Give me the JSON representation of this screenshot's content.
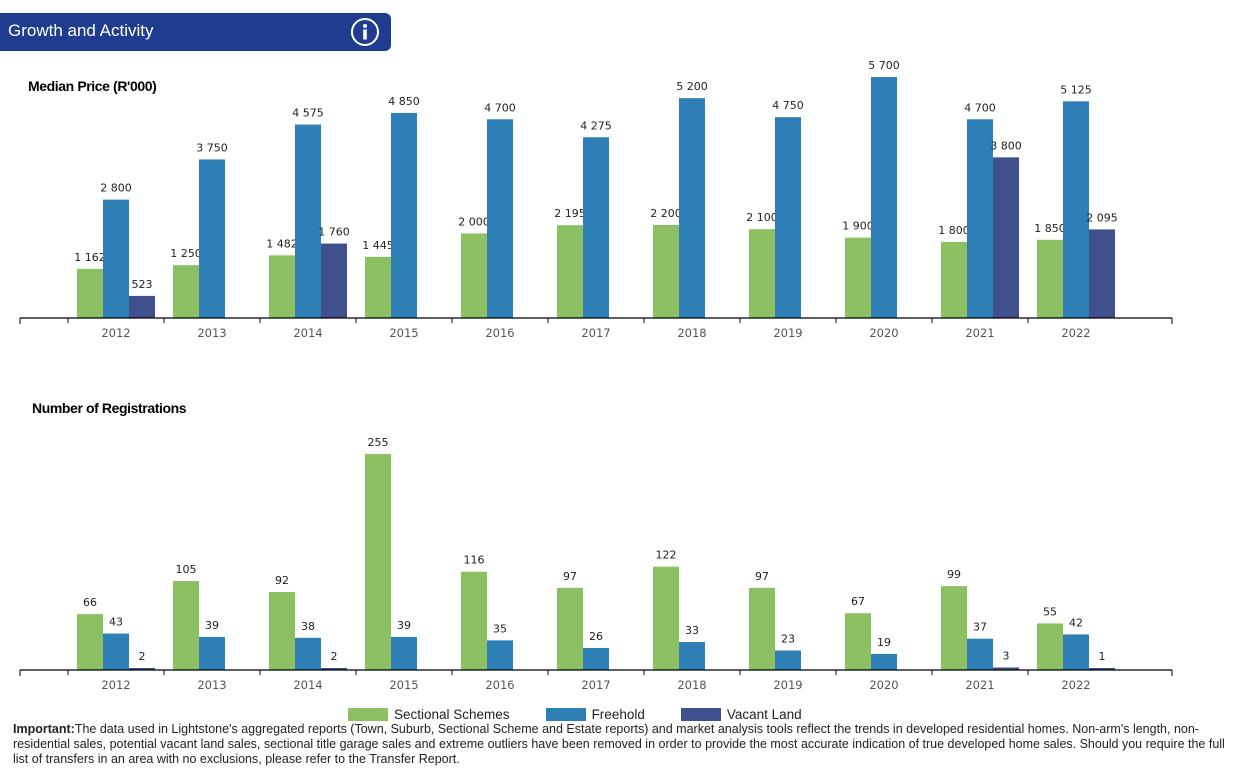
{
  "header": {
    "title": "Growth and Activity",
    "info_icon": "info-icon"
  },
  "colors": {
    "header": "#1f3c8f",
    "sectional": "#8cc063",
    "freehold": "#2e7fb6",
    "vacant": "#3f508d"
  },
  "legend": [
    {
      "name": "Sectional Schemes",
      "color": "#8cc063"
    },
    {
      "name": "Freehold",
      "color": "#2e7fb6"
    },
    {
      "name": "Vacant Land",
      "color": "#3f508d"
    }
  ],
  "disclaimer": {
    "lead": "Important:",
    "text": "The data used in Lightstone's aggregated reports (Town, Suburb, Sectional Scheme and Estate reports) and market analysis tools reflect the trends in developed residential homes. Non-arm's length, non-residential sales, potential vacant land sales, sectional title garage sales and extreme outliers have been removed in order to provide the most accurate indication of true developed home sales. Should you require the full list of transfers in an area with no exclusions, please refer to the Transfer Report."
  },
  "chart_data": [
    {
      "type": "bar",
      "title": "Median Price (R'000)",
      "categories": [
        "2012",
        "2013",
        "2014",
        "2015",
        "2016",
        "2017",
        "2018",
        "2019",
        "2020",
        "2021",
        "2022"
      ],
      "series": [
        {
          "name": "Sectional Schemes",
          "values": [
            1162,
            1250,
            1482,
            1445,
            2000,
            2195,
            2200,
            2100,
            1900,
            1800,
            1850
          ],
          "labels": [
            "1 162",
            "1 250",
            "1 482",
            "1 445",
            "2 000",
            "2 195",
            "2 200",
            "2 100",
            "1 900",
            "1 800",
            "1 850"
          ]
        },
        {
          "name": "Freehold",
          "values": [
            2800,
            3750,
            4575,
            4850,
            4700,
            4275,
            5200,
            4750,
            5700,
            4700,
            5125
          ],
          "labels": [
            "2 800",
            "3 750",
            "4 575",
            "4 850",
            "4 700",
            "4 275",
            "5 200",
            "4 750",
            "5 700",
            "4 700",
            "5 125"
          ]
        },
        {
          "name": "Vacant Land",
          "values": [
            523,
            null,
            1760,
            null,
            null,
            null,
            null,
            null,
            null,
            3800,
            2095
          ],
          "labels": [
            "523",
            "",
            "1 760",
            "",
            "",
            "",
            "",
            "",
            "",
            "3 800",
            "2 095"
          ]
        }
      ]
    },
    {
      "type": "bar",
      "title": "Number of Registrations",
      "categories": [
        "2012",
        "2013",
        "2014",
        "2015",
        "2016",
        "2017",
        "2018",
        "2019",
        "2020",
        "2021",
        "2022"
      ],
      "series": [
        {
          "name": "Sectional Schemes",
          "values": [
            66,
            105,
            92,
            255,
            116,
            97,
            122,
            97,
            67,
            99,
            55
          ],
          "labels": [
            "66",
            "105",
            "92",
            "255",
            "116",
            "97",
            "122",
            "97",
            "67",
            "99",
            "55"
          ]
        },
        {
          "name": "Freehold",
          "values": [
            43,
            39,
            38,
            39,
            35,
            26,
            33,
            23,
            19,
            37,
            42
          ],
          "labels": [
            "43",
            "39",
            "38",
            "39",
            "35",
            "26",
            "33",
            "23",
            "19",
            "37",
            "42"
          ]
        },
        {
          "name": "Vacant Land",
          "values": [
            2,
            null,
            2,
            null,
            null,
            null,
            null,
            null,
            null,
            3,
            1
          ],
          "labels": [
            "2",
            "",
            "2",
            "",
            "",
            "",
            "",
            "",
            "",
            "3",
            "1"
          ]
        }
      ]
    }
  ]
}
